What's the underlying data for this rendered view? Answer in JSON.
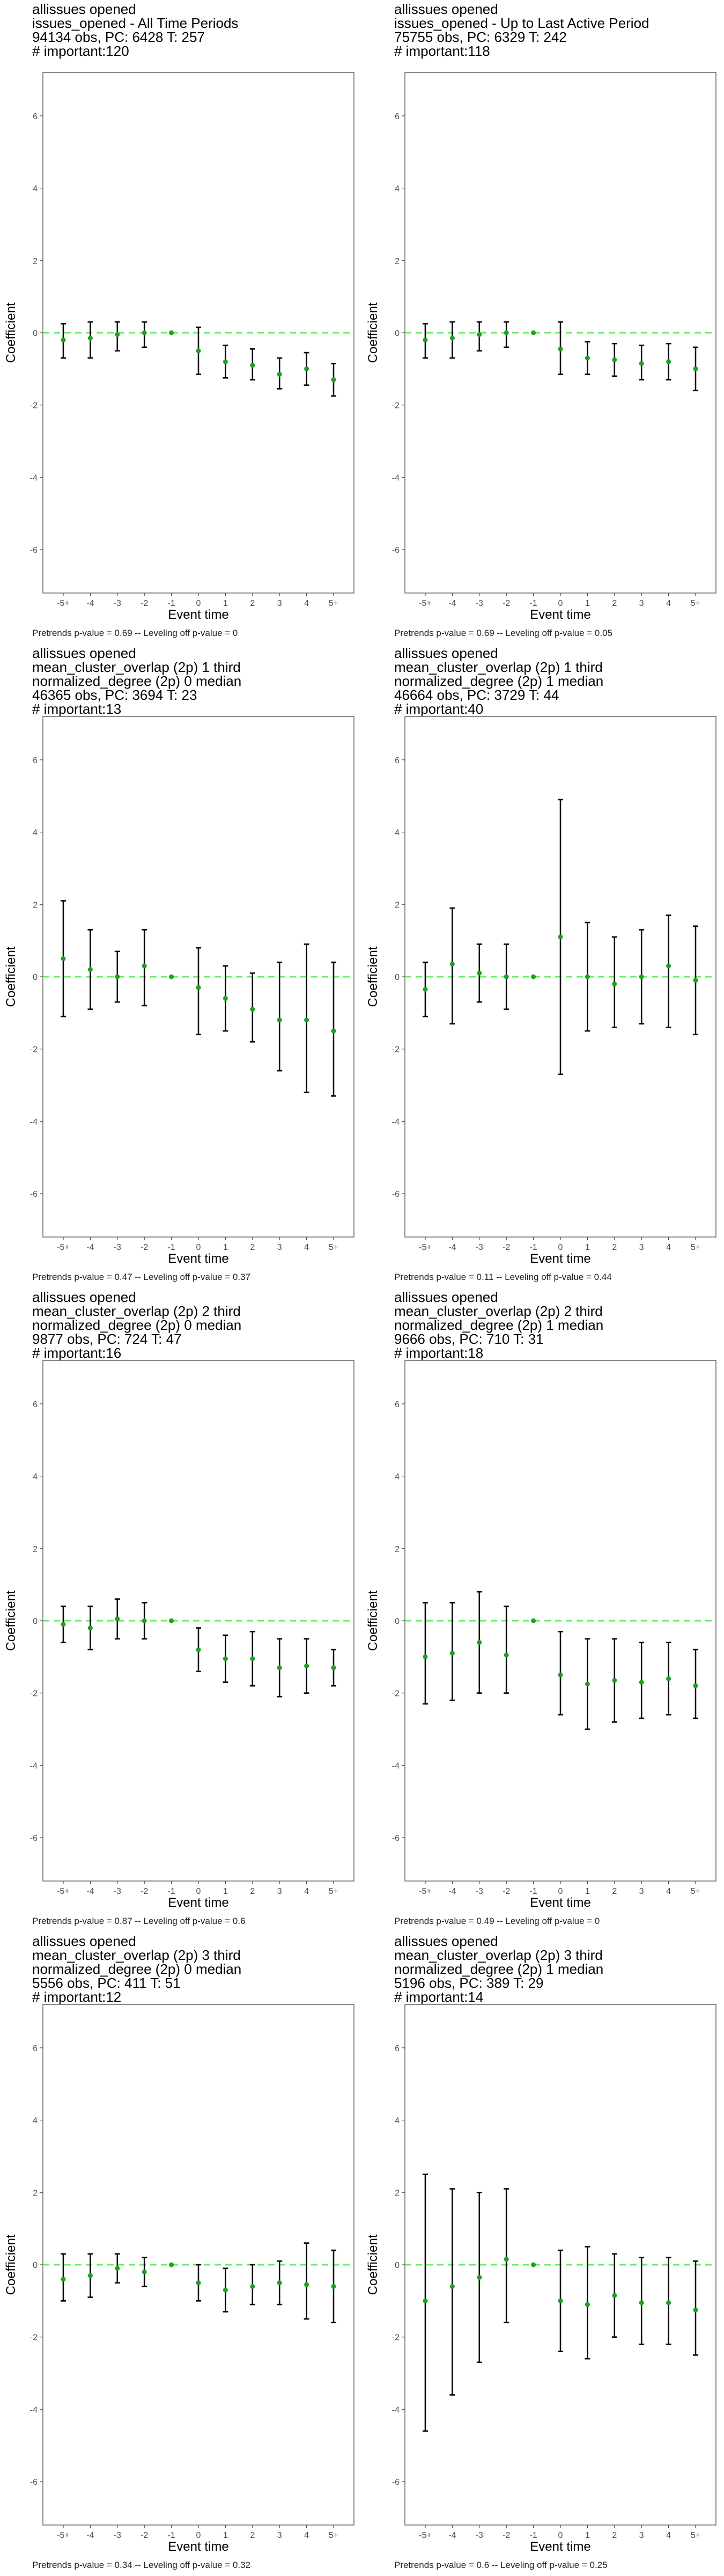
{
  "chart_data": [
    {
      "type": "scatter",
      "title_lines": [
        " allissues opened",
        "issues_opened - All Time Periods",
        "94134 obs, PC: 6428 T: 257",
        "# important:120"
      ],
      "footer": "Pretrends p-value = 0.69 -- Leveling off p-value = 0",
      "xlabel": "Event time",
      "ylabel": "Coefficient",
      "categories": [
        "-5+",
        "-4",
        "-3",
        "-2",
        "-1",
        "0",
        "1",
        "2",
        "3",
        "4",
        "5+"
      ],
      "yticks": [
        -6,
        -4,
        -2,
        0,
        2,
        4,
        6
      ],
      "ylim": [
        -7.2,
        7.2
      ],
      "estimates": [
        -0.2,
        -0.15,
        -0.05,
        0.0,
        0.0,
        -0.5,
        -0.8,
        -0.9,
        -1.15,
        -1.0,
        -1.3
      ],
      "ci_low": [
        -0.7,
        -0.7,
        -0.5,
        -0.4,
        0.0,
        -1.15,
        -1.25,
        -1.3,
        -1.55,
        -1.45,
        -1.75
      ],
      "ci_high": [
        0.25,
        0.3,
        0.3,
        0.3,
        0.0,
        0.15,
        -0.35,
        -0.45,
        -0.7,
        -0.55,
        -0.85
      ],
      "reference_line": 0
    },
    {
      "type": "scatter",
      "title_lines": [
        " allissues opened",
        "issues_opened - Up to Last Active Period",
        "75755 obs, PC: 6329 T: 242",
        "# important:118"
      ],
      "footer": "Pretrends p-value = 0.69 -- Leveling off p-value = 0.05",
      "xlabel": "Event time",
      "ylabel": "Coefficient",
      "categories": [
        "-5+",
        "-4",
        "-3",
        "-2",
        "-1",
        "0",
        "1",
        "2",
        "3",
        "4",
        "5+"
      ],
      "yticks": [
        -6,
        -4,
        -2,
        0,
        2,
        4,
        6
      ],
      "ylim": [
        -7.2,
        7.2
      ],
      "estimates": [
        -0.2,
        -0.15,
        -0.05,
        0.0,
        0.0,
        -0.45,
        -0.7,
        -0.75,
        -0.85,
        -0.8,
        -1.0
      ],
      "ci_low": [
        -0.7,
        -0.7,
        -0.5,
        -0.4,
        0.0,
        -1.15,
        -1.15,
        -1.2,
        -1.3,
        -1.3,
        -1.6
      ],
      "ci_high": [
        0.25,
        0.3,
        0.3,
        0.3,
        0.0,
        0.3,
        -0.25,
        -0.3,
        -0.35,
        -0.3,
        -0.4
      ],
      "reference_line": 0
    },
    {
      "type": "scatter",
      "title_lines": [
        " allissues opened",
        "mean_cluster_overlap (2p) 1 third",
        "normalized_degree (2p) 0 median",
        "46365 obs, PC: 3694 T: 23",
        "# important:13"
      ],
      "footer": "Pretrends p-value = 0.47 -- Leveling off p-value = 0.37",
      "xlabel": "Event time",
      "ylabel": "Coefficient",
      "categories": [
        "-5+",
        "-4",
        "-3",
        "-2",
        "-1",
        "0",
        "1",
        "2",
        "3",
        "4",
        "5+"
      ],
      "yticks": [
        -6,
        -4,
        -2,
        0,
        2,
        4,
        6
      ],
      "ylim": [
        -7.2,
        7.2
      ],
      "estimates": [
        0.5,
        0.2,
        0.0,
        0.3,
        0.0,
        -0.3,
        -0.6,
        -0.9,
        -1.2,
        -1.2,
        -1.5
      ],
      "ci_low": [
        -1.1,
        -0.9,
        -0.7,
        -0.8,
        0.0,
        -1.6,
        -1.5,
        -1.8,
        -2.6,
        -3.2,
        -3.3
      ],
      "ci_high": [
        2.1,
        1.3,
        0.7,
        1.3,
        0.0,
        0.8,
        0.3,
        0.1,
        0.4,
        0.9,
        0.4
      ],
      "reference_line": 0
    },
    {
      "type": "scatter",
      "title_lines": [
        " allissues opened",
        "mean_cluster_overlap (2p) 1 third",
        "normalized_degree (2p) 1 median",
        "46664 obs, PC: 3729 T: 44",
        "# important:40"
      ],
      "footer": "Pretrends p-value = 0.11 -- Leveling off p-value = 0.44",
      "xlabel": "Event time",
      "ylabel": "Coefficient",
      "categories": [
        "-5+",
        "-4",
        "-3",
        "-2",
        "-1",
        "0",
        "1",
        "2",
        "3",
        "4",
        "5+"
      ],
      "yticks": [
        -6,
        -4,
        -2,
        0,
        2,
        4,
        6
      ],
      "ylim": [
        -7.2,
        7.2
      ],
      "estimates": [
        -0.35,
        0.35,
        0.1,
        0.0,
        0.0,
        1.1,
        0.0,
        -0.2,
        0.0,
        0.3,
        -0.1
      ],
      "ci_low": [
        -1.1,
        -1.3,
        -0.7,
        -0.9,
        0.0,
        -2.7,
        -1.5,
        -1.4,
        -1.3,
        -1.4,
        -1.6
      ],
      "ci_high": [
        0.4,
        1.9,
        0.9,
        0.9,
        0.0,
        4.9,
        1.5,
        1.1,
        1.3,
        1.7,
        1.4
      ],
      "reference_line": 0
    },
    {
      "type": "scatter",
      "title_lines": [
        " allissues opened",
        "mean_cluster_overlap (2p) 2 third",
        "normalized_degree (2p) 0 median",
        "9877 obs, PC: 724 T: 47",
        "# important:16"
      ],
      "footer": "Pretrends p-value = 0.87 -- Leveling off p-value = 0.6",
      "xlabel": "Event time",
      "ylabel": "Coefficient",
      "categories": [
        "-5+",
        "-4",
        "-3",
        "-2",
        "-1",
        "0",
        "1",
        "2",
        "3",
        "4",
        "5+"
      ],
      "yticks": [
        -6,
        -4,
        -2,
        0,
        2,
        4,
        6
      ],
      "ylim": [
        -7.2,
        7.2
      ],
      "estimates": [
        -0.1,
        -0.2,
        0.05,
        0.0,
        0.0,
        -0.8,
        -1.05,
        -1.05,
        -1.3,
        -1.25,
        -1.3
      ],
      "ci_low": [
        -0.6,
        -0.8,
        -0.5,
        -0.5,
        0.0,
        -1.4,
        -1.7,
        -1.8,
        -2.1,
        -2.0,
        -1.8
      ],
      "ci_high": [
        0.4,
        0.4,
        0.6,
        0.5,
        0.0,
        -0.2,
        -0.4,
        -0.3,
        -0.5,
        -0.5,
        -0.8
      ],
      "reference_line": 0
    },
    {
      "type": "scatter",
      "title_lines": [
        " allissues opened",
        "mean_cluster_overlap (2p) 2 third",
        "normalized_degree (2p) 1 median",
        "9666 obs, PC: 710 T: 31",
        "# important:18"
      ],
      "footer": "Pretrends p-value = 0.49 -- Leveling off p-value = 0",
      "xlabel": "Event time",
      "ylabel": "Coefficient",
      "categories": [
        "-5+",
        "-4",
        "-3",
        "-2",
        "-1",
        "0",
        "1",
        "2",
        "3",
        "4",
        "5+"
      ],
      "yticks": [
        -6,
        -4,
        -2,
        0,
        2,
        4,
        6
      ],
      "ylim": [
        -7.2,
        7.2
      ],
      "estimates": [
        -1.0,
        -0.9,
        -0.6,
        -0.95,
        0.0,
        -1.5,
        -1.75,
        -1.65,
        -1.7,
        -1.6,
        -1.8
      ],
      "ci_low": [
        -2.3,
        -2.2,
        -2.0,
        -2.0,
        0.0,
        -2.6,
        -3.0,
        -2.8,
        -2.7,
        -2.6,
        -2.7
      ],
      "ci_high": [
        0.5,
        0.5,
        0.8,
        0.4,
        0.0,
        -0.3,
        -0.5,
        -0.5,
        -0.6,
        -0.6,
        -0.8
      ],
      "reference_line": 0
    },
    {
      "type": "scatter",
      "title_lines": [
        " allissues opened",
        "mean_cluster_overlap (2p) 3 third",
        "normalized_degree (2p) 0 median",
        "5556 obs, PC: 411 T: 51",
        "# important:12"
      ],
      "footer": "Pretrends p-value = 0.34 -- Leveling off p-value = 0.32",
      "xlabel": "Event time",
      "ylabel": "Coefficient",
      "categories": [
        "-5+",
        "-4",
        "-3",
        "-2",
        "-1",
        "0",
        "1",
        "2",
        "3",
        "4",
        "5+"
      ],
      "yticks": [
        -6,
        -4,
        -2,
        0,
        2,
        4,
        6
      ],
      "ylim": [
        -7.2,
        7.2
      ],
      "estimates": [
        -0.4,
        -0.3,
        -0.1,
        -0.2,
        0.0,
        -0.5,
        -0.7,
        -0.6,
        -0.5,
        -0.55,
        -0.6
      ],
      "ci_low": [
        -1.0,
        -0.9,
        -0.5,
        -0.6,
        0.0,
        -1.0,
        -1.3,
        -1.1,
        -1.1,
        -1.5,
        -1.6
      ],
      "ci_high": [
        0.3,
        0.3,
        0.3,
        0.2,
        0.0,
        0.0,
        -0.1,
        0.0,
        0.1,
        0.6,
        0.4
      ],
      "reference_line": 0
    },
    {
      "type": "scatter",
      "title_lines": [
        " allissues opened",
        "mean_cluster_overlap (2p) 3 third",
        "normalized_degree (2p) 1 median",
        "5196 obs, PC: 389 T: 29",
        "# important:14"
      ],
      "footer": "Pretrends p-value = 0.6 -- Leveling off p-value = 0.25",
      "xlabel": "Event time",
      "ylabel": "Coefficient",
      "categories": [
        "-5+",
        "-4",
        "-3",
        "-2",
        "-1",
        "0",
        "1",
        "2",
        "3",
        "4",
        "5+"
      ],
      "yticks": [
        -6,
        -4,
        -2,
        0,
        2,
        4,
        6
      ],
      "ylim": [
        -7.2,
        7.2
      ],
      "estimates": [
        -1.0,
        -0.6,
        -0.35,
        0.15,
        0.0,
        -1.0,
        -1.1,
        -0.85,
        -1.05,
        -1.05,
        -1.25
      ],
      "ci_low": [
        -4.6,
        -3.6,
        -2.7,
        -1.6,
        0.0,
        -2.4,
        -2.6,
        -2.0,
        -2.2,
        -2.2,
        -2.5
      ],
      "ci_high": [
        2.5,
        2.1,
        2.0,
        2.1,
        0.0,
        0.4,
        0.5,
        0.3,
        0.2,
        0.2,
        0.1
      ],
      "reference_line": 0
    }
  ],
  "colors": {
    "point": "#1fa01f",
    "reference_line": "#66ee66",
    "errorbar": "#000000",
    "panel_border": "#4d4d4d",
    "tick_text": "#4d4d4d"
  }
}
